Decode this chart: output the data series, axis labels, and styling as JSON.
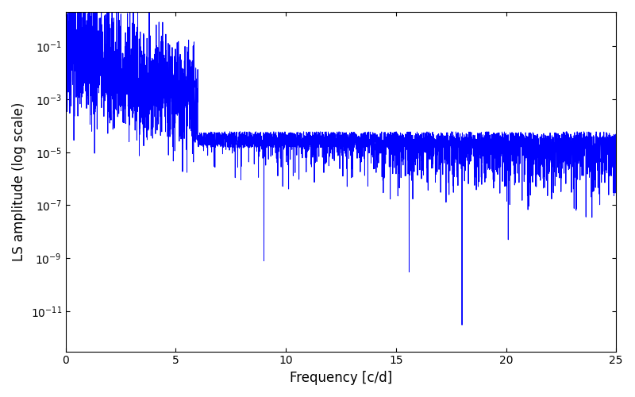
{
  "xlabel": "Frequency [c/d]",
  "ylabel": "LS amplitude (log scale)",
  "line_color": "#0000ff",
  "line_width": 0.7,
  "xlim": [
    0,
    25
  ],
  "ylim": [
    3e-13,
    2.0
  ],
  "yticks": [
    1e-11,
    1e-09,
    1e-07,
    1e-05,
    0.001,
    0.1
  ],
  "xticks": [
    0,
    5,
    10,
    15,
    20,
    25
  ],
  "figsize": [
    8.0,
    5.0
  ],
  "dpi": 100,
  "background_color": "#ffffff",
  "n_points": 5000,
  "freq_max": 25.0,
  "seed": 42
}
